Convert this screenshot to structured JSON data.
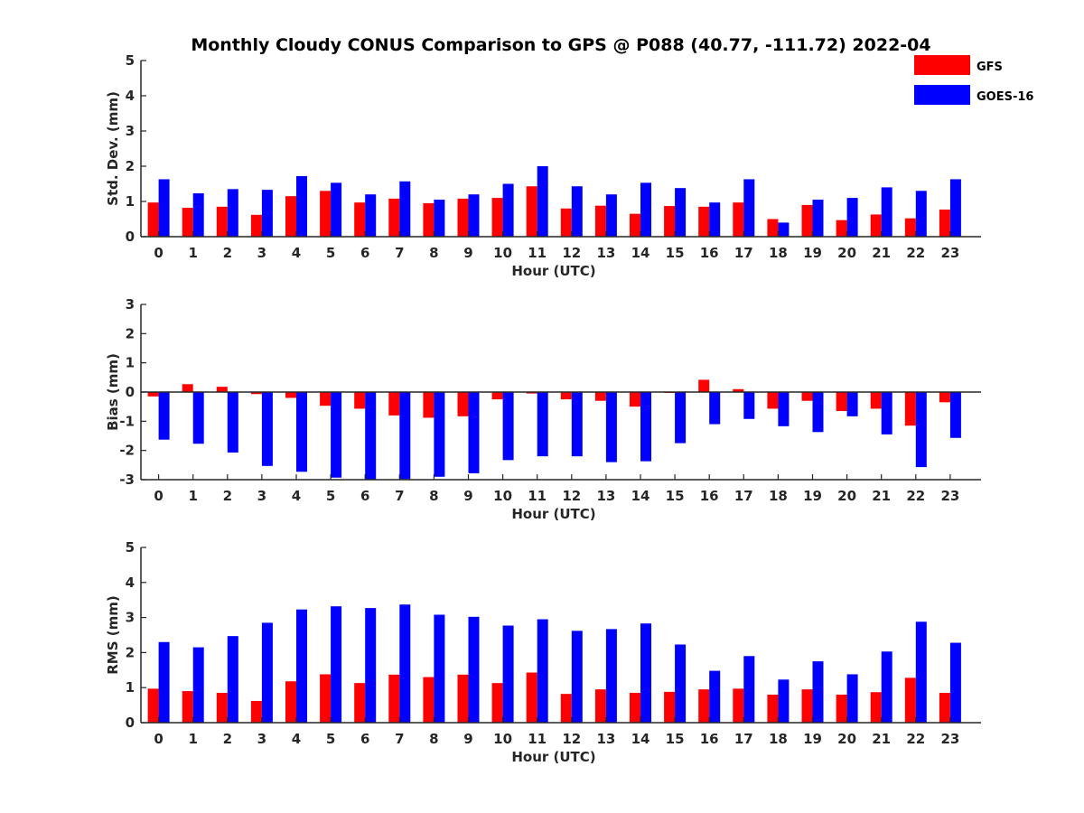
{
  "chart_data": {
    "type": "bar",
    "title": "Monthly Cloudy CONUS Comparison to GPS @ P088 (40.77, -111.72) 2022-04",
    "legend": {
      "position": "top-right",
      "entries": [
        {
          "name": "GFS",
          "color": "#ff0000"
        },
        {
          "name": "GOES-16",
          "color": "#0000ff"
        }
      ]
    },
    "categories": [
      "0",
      "1",
      "2",
      "3",
      "4",
      "5",
      "6",
      "7",
      "8",
      "9",
      "10",
      "11",
      "12",
      "13",
      "14",
      "15",
      "16",
      "17",
      "18",
      "19",
      "20",
      "21",
      "22",
      "23"
    ],
    "panels": [
      {
        "id": "std",
        "ylabel": "Std. Dev. (mm)",
        "xlabel": "Hour (UTC)",
        "ylim": [
          0,
          5
        ],
        "yticks": [
          "0",
          "1",
          "2",
          "3",
          "4",
          "5"
        ],
        "series": [
          {
            "name": "GFS",
            "values": [
              0.97,
              0.82,
              0.85,
              0.62,
              1.15,
              1.3,
              0.97,
              1.08,
              0.95,
              1.08,
              1.1,
              1.43,
              0.8,
              0.88,
              0.65,
              0.87,
              0.85,
              0.97,
              0.5,
              0.9,
              0.47,
              0.63,
              0.52,
              0.77
            ]
          },
          {
            "name": "GOES-16",
            "values": [
              1.63,
              1.23,
              1.35,
              1.33,
              1.72,
              1.53,
              1.2,
              1.57,
              1.05,
              1.2,
              1.5,
              2.0,
              1.43,
              1.2,
              1.53,
              1.38,
              0.97,
              1.63,
              0.4,
              1.05,
              1.1,
              1.4,
              1.3,
              1.63
            ]
          }
        ]
      },
      {
        "id": "bias",
        "ylabel": "Bias (mm)",
        "xlabel": "Hour (UTC)",
        "ylim": [
          -3,
          3
        ],
        "yticks": [
          "-3",
          "-2",
          "-1",
          "0",
          "1",
          "2",
          "3"
        ],
        "series": [
          {
            "name": "GFS",
            "values": [
              -0.15,
              0.27,
              0.18,
              -0.07,
              -0.2,
              -0.47,
              -0.57,
              -0.8,
              -0.88,
              -0.83,
              -0.25,
              -0.05,
              -0.25,
              -0.3,
              -0.5,
              -0.03,
              0.42,
              0.1,
              -0.57,
              -0.3,
              -0.65,
              -0.57,
              -1.15,
              -0.35
            ]
          },
          {
            "name": "GOES-16",
            "values": [
              -1.63,
              -1.77,
              -2.07,
              -2.53,
              -2.73,
              -2.93,
              -3.0,
              -2.98,
              -2.9,
              -2.78,
              -2.33,
              -2.2,
              -2.2,
              -2.4,
              -2.37,
              -1.75,
              -1.1,
              -0.92,
              -1.17,
              -1.37,
              -0.83,
              -1.45,
              -2.57,
              -1.57
            ]
          }
        ]
      },
      {
        "id": "rms",
        "ylabel": "RMS (mm)",
        "xlabel": "Hour (UTC)",
        "ylim": [
          0,
          5
        ],
        "yticks": [
          "0",
          "1",
          "2",
          "3",
          "4",
          "5"
        ],
        "series": [
          {
            "name": "GFS",
            "values": [
              0.97,
              0.9,
              0.85,
              0.62,
              1.18,
              1.38,
              1.13,
              1.37,
              1.3,
              1.37,
              1.13,
              1.43,
              0.82,
              0.95,
              0.85,
              0.88,
              0.95,
              0.97,
              0.8,
              0.95,
              0.8,
              0.87,
              1.28,
              0.85
            ]
          },
          {
            "name": "GOES-16",
            "values": [
              2.3,
              2.15,
              2.47,
              2.85,
              3.23,
              3.32,
              3.27,
              3.37,
              3.08,
              3.02,
              2.77,
              2.95,
              2.62,
              2.67,
              2.83,
              2.23,
              1.48,
              1.9,
              1.23,
              1.75,
              1.38,
              2.03,
              2.88,
              2.28
            ]
          }
        ]
      }
    ]
  }
}
